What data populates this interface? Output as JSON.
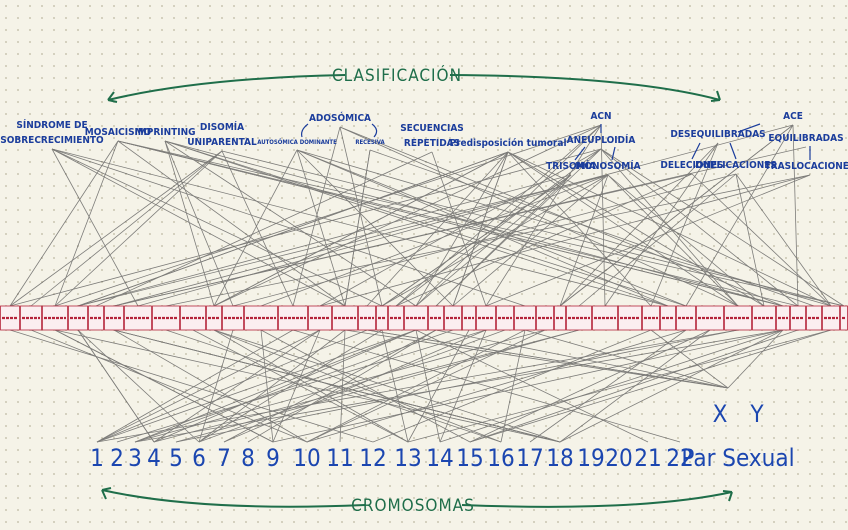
{
  "header": {
    "title": "CLASIFICACIÓN"
  },
  "categories": [
    {
      "lines": [
        "SÍNDROME DE",
        "SOBRECRECIMIENTO"
      ]
    },
    {
      "lines": [
        "MOSAICISMO"
      ]
    },
    {
      "lines": [
        "IMPRINTING"
      ]
    },
    {
      "lines": [
        "DISOMÍA",
        "UNIPARENTAL"
      ]
    },
    {
      "lines": [
        "ADOSÓMICA"
      ]
    },
    {
      "lines": [
        "AUTOSÓMICA DOMINANTE"
      ]
    },
    {
      "lines": [
        "RECESIVA"
      ]
    },
    {
      "lines": [
        "SECUENCIAS",
        "REPETIDAS"
      ]
    },
    {
      "lines": [
        "Predisposición tumoral"
      ]
    },
    {
      "lines": [
        "ACN"
      ]
    },
    {
      "lines": [
        "ANEUPLOIDÍA"
      ]
    },
    {
      "lines": [
        "TRISOMÍA"
      ]
    },
    {
      "lines": [
        "MONOSOMÍA"
      ]
    },
    {
      "lines": [
        "DESEQUILIBRADAS"
      ]
    },
    {
      "lines": [
        "ACE"
      ]
    },
    {
      "lines": [
        "EQUILIBRADAS"
      ]
    },
    {
      "lines": [
        "DELECIONES"
      ]
    },
    {
      "lines": [
        "DUPLICACIONES"
      ]
    },
    {
      "lines": [
        "TRASLOCACIONES"
      ]
    }
  ],
  "chromosomes": [
    "1",
    "2",
    "3",
    "4",
    "5",
    "6",
    "7",
    "8",
    "9",
    "10",
    "11",
    "12",
    "13",
    "14",
    "15",
    "16",
    "17",
    "18",
    "19",
    "20",
    "21",
    "22"
  ],
  "sex_chromosomes": [
    "X",
    "Y"
  ],
  "sex_pair_label": "Par Sexual",
  "footer": {
    "title": "CROMOSOMAS"
  }
}
